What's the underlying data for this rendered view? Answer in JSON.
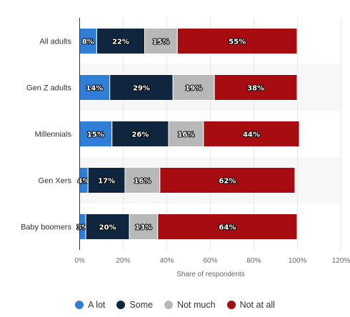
{
  "chart_data": {
    "type": "bar",
    "orientation": "horizontal",
    "stacked": true,
    "categories": [
      "All adults",
      "Gen Z adults",
      "Millennials",
      "Gen Xers",
      "Baby boomers"
    ],
    "series": [
      {
        "name": "A lot",
        "color": "#2f7ed8",
        "values": [
          8,
          14,
          15,
          4,
          3
        ]
      },
      {
        "name": "Some",
        "color": "#10263e",
        "values": [
          22,
          29,
          26,
          17,
          20
        ]
      },
      {
        "name": "Not much",
        "color": "#b8b8b8",
        "values": [
          15,
          19,
          16,
          16,
          13
        ]
      },
      {
        "name": "Not at all",
        "color": "#a70d10",
        "values": [
          55,
          38,
          44,
          62,
          64
        ]
      }
    ],
    "data_labels": [
      [
        "8%",
        "22%",
        "15%",
        "55%"
      ],
      [
        "14%",
        "29%",
        "19%",
        "38%"
      ],
      [
        "15%",
        "26%",
        "16%",
        "44%"
      ],
      [
        "4%",
        "17%",
        "16%",
        "62%"
      ],
      [
        "3%",
        "20%",
        "13%",
        "64%"
      ]
    ],
    "xlim": [
      0,
      120
    ],
    "xticks": [
      "0%",
      "20%",
      "40%",
      "60%",
      "80%",
      "100%",
      "120%"
    ],
    "xlabel": "Share of respondents",
    "ylabel": "",
    "title": "",
    "grid": true,
    "legend_position": "bottom"
  }
}
